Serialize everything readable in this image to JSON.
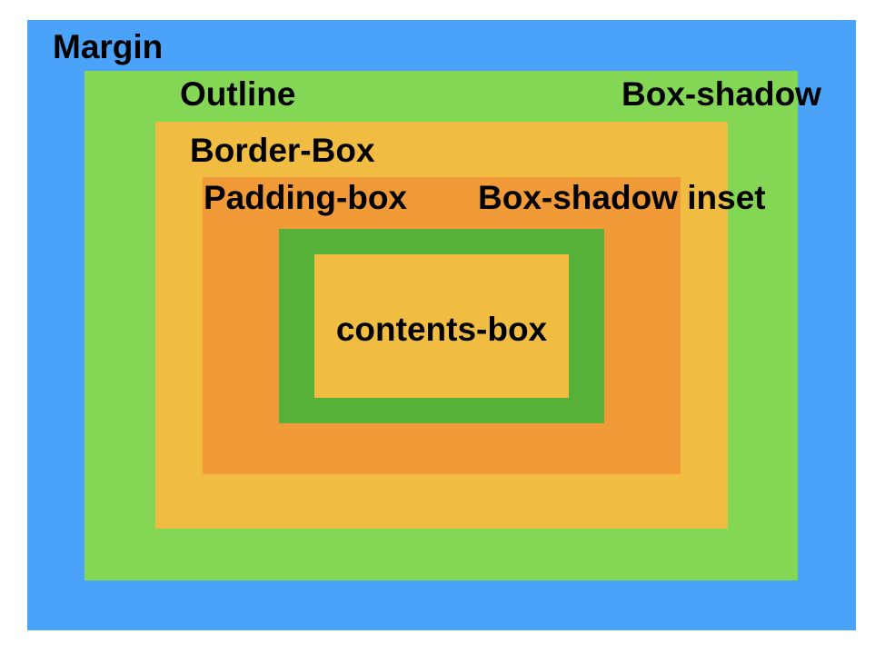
{
  "colors": {
    "margin": "#4aa3f8",
    "outline": "#84d655",
    "border_box": "#f0bc41",
    "padding_box": "#f19b38",
    "box_shadow_inset": "#57b038",
    "contents_box": "#f0bc41"
  },
  "labels": {
    "margin": "Margin",
    "outline": "Outline",
    "box_shadow": "Box-shadow",
    "border_box": "Border-Box",
    "padding_box": "Padding-box",
    "box_shadow_inset": "Box-shadow inset",
    "contents_box": "contents-box"
  }
}
